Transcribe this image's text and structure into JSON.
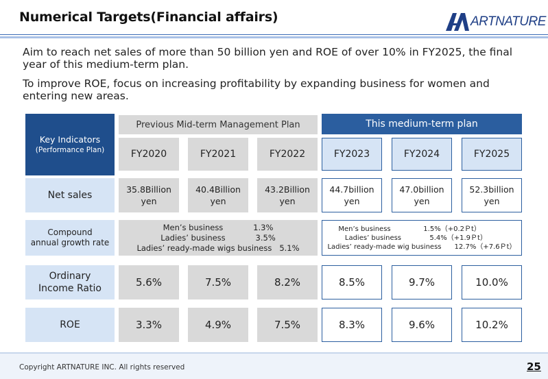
{
  "header": {
    "title": "Numerical Targets(Financial affairs)",
    "logo_text": "ARTNATURE"
  },
  "intro": {
    "line1": "Aim to reach net sales of more than 50 billion yen and ROE of over 10% in FY2025, the final year of this medium-term plan.",
    "line2": "To improve ROE, focus on increasing profitability by expanding business for women and entering new areas."
  },
  "table": {
    "key_title": "Key Indicators",
    "key_sub": "(Performance Plan)",
    "previous_plan_label": "Previous Mid-term Management Plan",
    "current_plan_label": "This medium-term plan",
    "years": [
      "FY2020",
      "FY2021",
      "FY2022",
      "FY2023",
      "FY2024",
      "FY2025"
    ],
    "rows": {
      "net_sales": {
        "label": "Net sales",
        "values": [
          [
            "35.8Billion",
            "yen"
          ],
          [
            "40.4Billion",
            "yen"
          ],
          [
            "43.2Billion",
            "yen"
          ],
          [
            "44.7billion",
            "yen"
          ],
          [
            "47.0billion",
            "yen"
          ],
          [
            "52.3billion",
            "yen"
          ]
        ]
      },
      "growth": {
        "label_line1": "Compound",
        "label_line2": "annual growth rate",
        "previous": "Men’s business            1.3%\nLadies’ business            3.5%\nLadies’ ready-made wigs business   5.1%",
        "current": "     Men’s business               1.5%（+0.2Ｐt）\n        Ladies’ business             5.4%（+1.9Ｐt）\nLadies’ ready-made wig business      12.7%（+7.6Ｐt）"
      },
      "ordinary_income": {
        "label_line1": "Ordinary",
        "label_line2": "Income Ratio",
        "values": [
          "5.6%",
          "7.5%",
          "8.2%",
          "8.5%",
          "9.7%",
          "10.0%"
        ]
      },
      "roe": {
        "label": "ROE",
        "values": [
          "3.3%",
          "4.9%",
          "7.5%",
          "8.3%",
          "9.6%",
          "10.2%"
        ]
      }
    }
  },
  "footer": {
    "copyright": "Copyright ARTNATURE INC. All rights reserved",
    "page": "25"
  },
  "colors": {
    "navy": "#1f4e8c",
    "accent_blue": "#2b5e9f",
    "light_blue": "#d6e4f5",
    "gray": "#d9d9d9"
  }
}
